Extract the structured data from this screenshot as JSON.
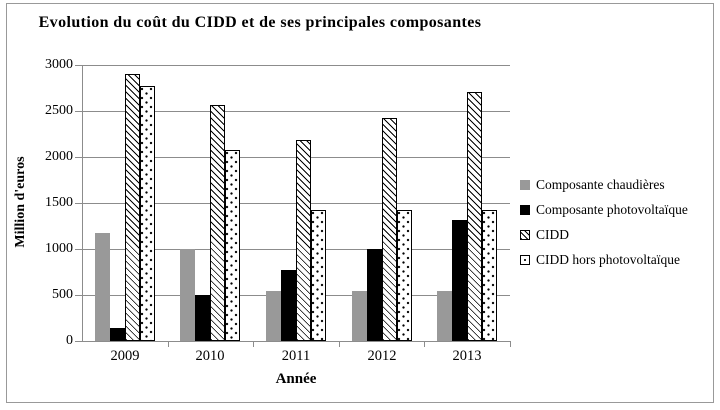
{
  "chart_data": {
    "type": "bar",
    "title": "Evolution du coût du CIDD et de ses principales composantes",
    "xlabel": "Année",
    "ylabel": "Million d'euros",
    "ylim": [
      0,
      3000
    ],
    "ytick_step": 500,
    "grid": "horizontal",
    "legend_position": "right",
    "categories": [
      "2009",
      "2010",
      "2011",
      "2012",
      "2013"
    ],
    "series": [
      {
        "name": "Composante chaudières",
        "pattern": "solid-gray",
        "values": [
          1170,
          1000,
          540,
          540,
          540
        ]
      },
      {
        "name": "Composante photovoltaïque",
        "pattern": "solid-black",
        "values": [
          140,
          500,
          770,
          1000,
          1320
        ]
      },
      {
        "name": "CIDD",
        "pattern": "hatch",
        "values": [
          2900,
          2570,
          2190,
          2420,
          2710
        ]
      },
      {
        "name": "CIDD hors photovoltaïque",
        "pattern": "dots",
        "values": [
          2770,
          2080,
          1420,
          1420,
          1420
        ]
      }
    ]
  },
  "colors": {
    "bar_gray": "#999999",
    "bar_black": "#000000",
    "pattern_fg": "#000000",
    "pattern_bg": "#ffffff",
    "grid": "#8c8c8c",
    "frame": "#999999"
  }
}
